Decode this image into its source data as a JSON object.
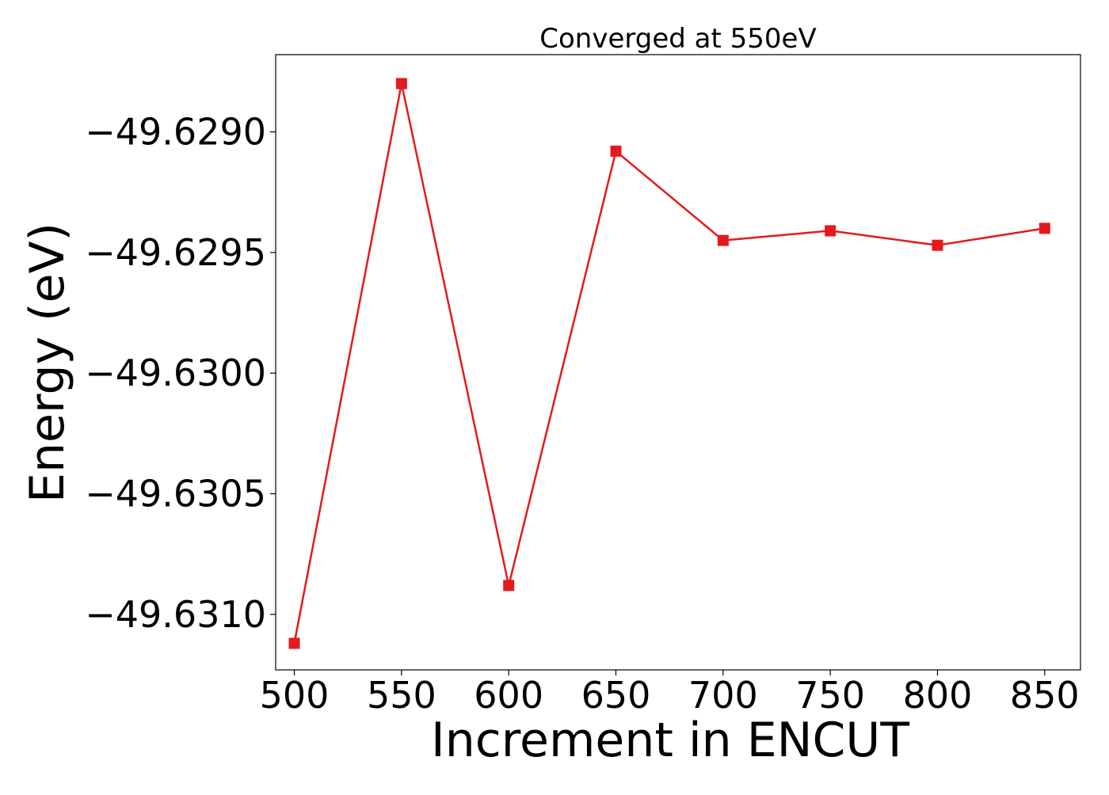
{
  "chart_data": {
    "type": "line",
    "title": "Converged at 550eV",
    "xlabel": "Increment in ENCUT",
    "ylabel": "Energy (eV)",
    "x": [
      500,
      550,
      600,
      650,
      700,
      750,
      800,
      850
    ],
    "xticks": [
      500,
      550,
      600,
      650,
      700,
      750,
      800,
      850
    ],
    "xtick_labels": [
      "500",
      "550",
      "600",
      "650",
      "700",
      "750",
      "800",
      "850"
    ],
    "yticks": [
      -49.629,
      -49.6295,
      -49.63,
      -49.6305,
      -49.631
    ],
    "ytick_labels": [
      "−49.6290",
      "−49.6295",
      "−49.6300",
      "−49.6305",
      "−49.6310"
    ],
    "xlim": [
      491.3,
      866.7
    ],
    "ylim": [
      -49.63123,
      -49.62868
    ],
    "grid": false,
    "legend": "none",
    "series": [
      {
        "values": [
          -49.63112,
          -49.6288,
          -49.63088,
          -49.62908,
          -49.62945,
          -49.62941,
          -49.62947,
          -49.6294
        ],
        "color": "#e41a1c",
        "marker": "square"
      }
    ]
  }
}
